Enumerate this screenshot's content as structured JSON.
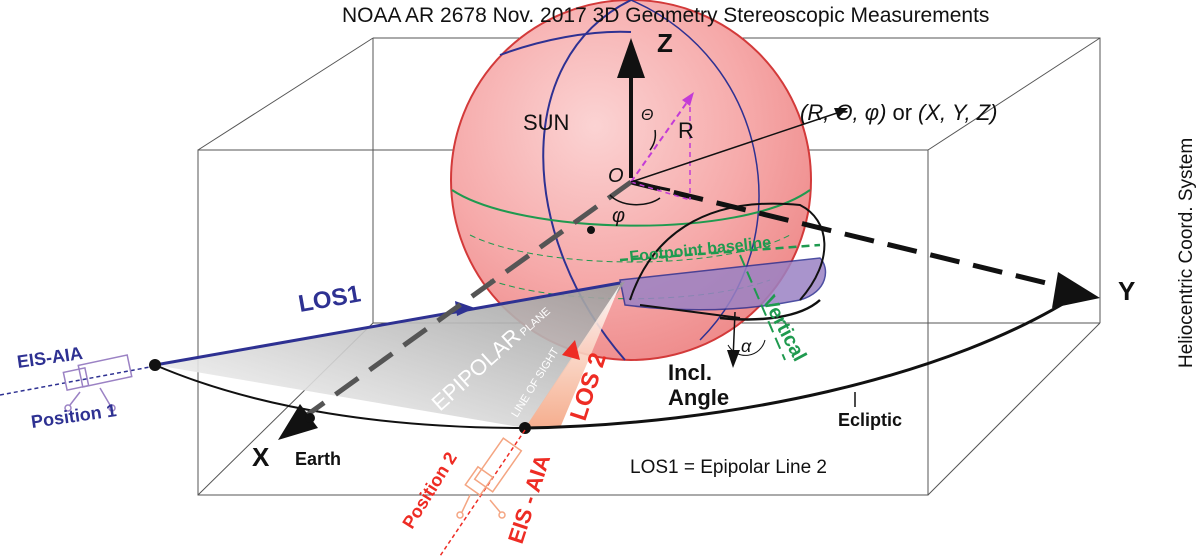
{
  "title": "NOAA AR 2678 Nov. 2017 3D Geometry Stereoscopic  Measurements",
  "side_label": "Heliocentric Coord. System",
  "axes": {
    "x": "X",
    "y": "Y",
    "z": "Z",
    "origin": "O"
  },
  "sphere": {
    "label": "SUN",
    "radius_label": "R",
    "theta_label": "Θ",
    "phi_label": "φ"
  },
  "coords": {
    "spherical": "(R, Θ, φ)",
    "or": "or",
    "cartesian": "(X, Y, Z)"
  },
  "labels": {
    "footpoint": "Footpoint baseline",
    "vertical": "Vertical",
    "alpha": "α",
    "incl_1": "Incl.",
    "incl_2": "Angle",
    "los1": "LOS1",
    "los2": "LOS 2",
    "line_of_sight": "LINE OF SIGHT",
    "epipolar_big": "EPIPOLAR",
    "epipolar_small": " PLANE",
    "eis_aia_1": "EIS-AIA",
    "position_1": "Position 1",
    "eis_aia_2": "EIS - AIA",
    "position_2": "Position 2",
    "earth": "Earth",
    "ecliptic": "Ecliptic",
    "epipolar_line": "LOS1 = Epipolar Line 2"
  },
  "colors": {
    "sun_fill": "#f4a3a3",
    "sun_stroke": "#d33a3a",
    "blue": "#2e3192",
    "green": "#1f9a4f",
    "red": "#ee2c24",
    "orange": "#f4a582",
    "magenta": "#c33bd6",
    "purple": "#9b82c4"
  },
  "icons": [
    "telescope-icon"
  ]
}
